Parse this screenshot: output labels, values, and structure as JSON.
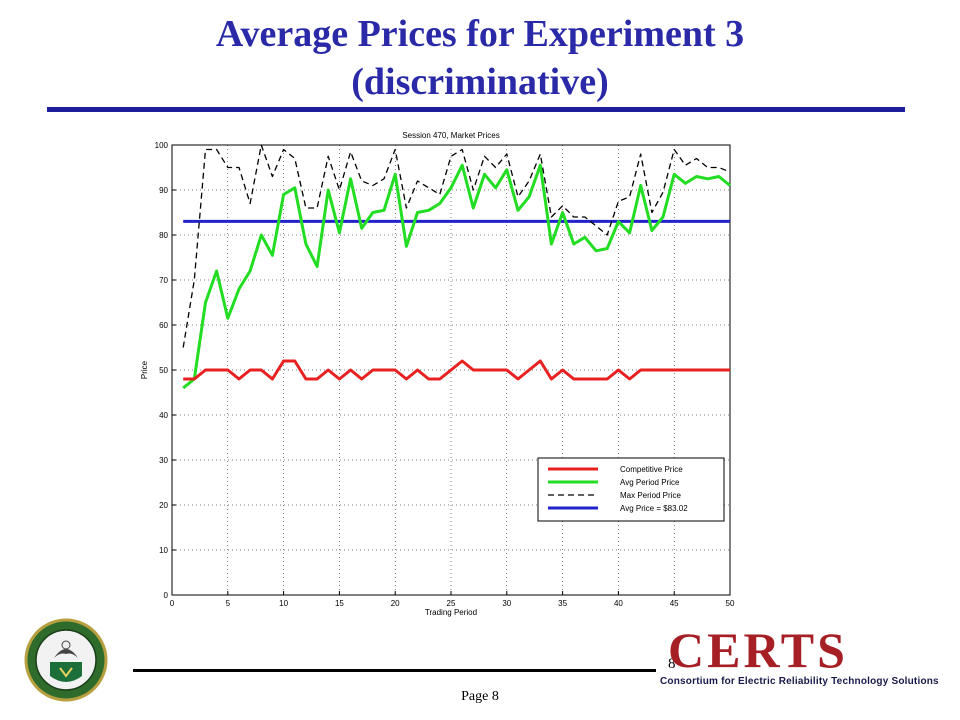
{
  "slide": {
    "title_line1": "Average Prices for Experiment 3",
    "title_line2": "(discriminative)",
    "page_label": "Page 8",
    "slide_number": "8"
  },
  "logos": {
    "certs_wordmark": "CERTS",
    "certs_tagline": "Consortium for Electric Reliability Technology Solutions"
  },
  "colors": {
    "title": "#2a2aa8",
    "competitive": "#e82020",
    "avg_period": "#22dd22",
    "max_period": "#000000",
    "avg_price": "#2222cc"
  },
  "chart_data": {
    "type": "line",
    "title": "Session 470, Market Prices",
    "xlabel": "Trading Period",
    "ylabel": "Price",
    "xlim": [
      0,
      50
    ],
    "ylim": [
      0,
      100
    ],
    "xticks": [
      0,
      5,
      10,
      15,
      20,
      25,
      30,
      35,
      40,
      45,
      50
    ],
    "yticks": [
      0,
      10,
      20,
      30,
      40,
      50,
      60,
      70,
      80,
      90,
      100
    ],
    "grid": true,
    "legend_position": "lower-right",
    "x": [
      1,
      2,
      3,
      4,
      5,
      6,
      7,
      8,
      9,
      10,
      11,
      12,
      13,
      14,
      15,
      16,
      17,
      18,
      19,
      20,
      21,
      22,
      23,
      24,
      25,
      26,
      27,
      28,
      29,
      30,
      31,
      32,
      33,
      34,
      35,
      36,
      37,
      38,
      39,
      40,
      41,
      42,
      43,
      44,
      45,
      46,
      47,
      48,
      49,
      50
    ],
    "series": [
      {
        "name": "Competitive Price",
        "color": "#e82020",
        "style": "solid",
        "values": [
          48,
          48,
          50,
          50,
          50,
          48,
          50,
          50,
          48,
          52,
          52,
          48,
          48,
          50,
          48,
          50,
          48,
          50,
          50,
          50,
          48,
          50,
          48,
          48,
          50,
          52,
          50,
          50,
          50,
          50,
          48,
          50,
          52,
          48,
          50,
          48,
          48,
          48,
          48,
          50,
          48,
          50,
          50,
          50,
          50,
          50,
          50,
          50,
          50,
          50
        ]
      },
      {
        "name": "Avg Period Price",
        "color": "#22dd22",
        "style": "solid",
        "values": [
          46,
          48,
          65,
          72,
          61.5,
          68,
          72,
          80,
          75.5,
          89,
          90.5,
          78,
          73,
          90,
          80.5,
          92.5,
          81.5,
          85,
          85.5,
          93.5,
          77.5,
          85,
          85.5,
          87,
          90.5,
          95.5,
          86,
          93.5,
          90.5,
          94.5,
          85.5,
          88.5,
          95.5,
          78,
          85,
          78,
          79.5,
          76.5,
          77,
          83,
          80.5,
          91,
          81,
          84,
          93.5,
          91.5,
          93,
          92.5,
          93,
          91
        ]
      },
      {
        "name": "Max Period Price",
        "color": "#000000",
        "style": "dashed",
        "values": [
          55,
          70,
          99,
          99,
          95,
          95,
          87,
          100,
          93,
          99,
          97,
          86,
          86,
          97.5,
          90,
          98.5,
          92,
          91,
          92.5,
          99,
          86,
          92,
          90.5,
          89,
          97.5,
          99,
          90,
          97.5,
          95,
          98,
          88.5,
          92,
          98,
          84,
          86.5,
          84,
          84,
          82,
          80,
          87.5,
          88.5,
          98,
          85,
          89.5,
          99,
          95.5,
          97,
          95,
          95,
          94
        ]
      },
      {
        "name": "Avg Price = $83.02",
        "color": "#2222cc",
        "style": "solid",
        "values": [
          83.02,
          83.02,
          83.02,
          83.02,
          83.02,
          83.02,
          83.02,
          83.02,
          83.02,
          83.02,
          83.02,
          83.02,
          83.02,
          83.02,
          83.02,
          83.02,
          83.02,
          83.02,
          83.02,
          83.02,
          83.02,
          83.02,
          83.02,
          83.02,
          83.02,
          83.02,
          83.02,
          83.02,
          83.02,
          83.02,
          83.02,
          83.02,
          83.02,
          83.02,
          83.02,
          83.02,
          83.02,
          83.02,
          83.02,
          83.02,
          83.02,
          83.02,
          83.02,
          83.02,
          83.02,
          83.02,
          83.02,
          83.02,
          83.02,
          83.02
        ]
      }
    ]
  }
}
